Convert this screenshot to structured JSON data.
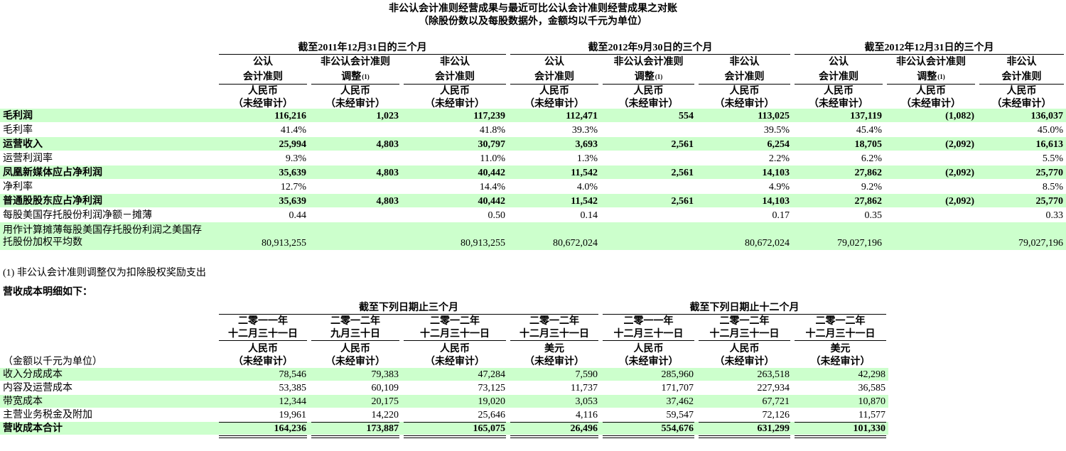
{
  "title": [
    "非公认会计准则经营成果与最近可比公认会计准则经营成果之对账",
    "（除股份数以及每股数据外，金额均以千元为单位）"
  ],
  "table1": {
    "groups": [
      "截至2011年12月31日的三个月",
      "截至2012年9月30日的三个月",
      "截至2012年12月31日的三个月"
    ],
    "columns": [
      {
        "line1": "公认",
        "line2": "会计准则",
        "currency": "人民币",
        "audit": "（未经审计）"
      },
      {
        "line1": "非公认会计准则",
        "line2": "调整",
        "note": "(1)",
        "currency": "人民币",
        "audit": "（未经审计）"
      },
      {
        "line1": "非公认",
        "line2": "会计准则",
        "currency": "人民币",
        "audit": "（未经审计）"
      },
      {
        "line1": "公认",
        "line2": "会计准则",
        "currency": "人民币",
        "audit": "（未经审计）"
      },
      {
        "line1": "非公认会计准则",
        "line2": "调整",
        "note": "(1)",
        "currency": "人民币",
        "audit": "（未经审计）"
      },
      {
        "line1": "非公认",
        "line2": "会计准则",
        "currency": "人民币",
        "audit": "（未经审计）"
      },
      {
        "line1": "公认",
        "line2": "会计准则",
        "currency": "人民币",
        "audit": "（未经审计）"
      },
      {
        "line1": "非公认会计准则",
        "line2": "调整",
        "note": "(1)",
        "currency": "人民币",
        "audit": "（未经审计）"
      },
      {
        "line1": "非公认",
        "line2": "会计准则",
        "currency": "人民币",
        "audit": "（未经审计）"
      }
    ],
    "rows": [
      {
        "label": "毛利润",
        "cells": [
          "116,216",
          "1,023",
          "117,239",
          "112,471",
          "554",
          "113,025",
          "137,119",
          "(1,082)",
          "136,037"
        ]
      },
      {
        "label": "毛利率",
        "cells": [
          "41.4%",
          null,
          "41.8%",
          "39.3%",
          null,
          "39.5%",
          "45.4%",
          null,
          "45.0%"
        ]
      },
      {
        "label": "运营收入",
        "cells": [
          "25,994",
          "4,803",
          "30,797",
          "3,693",
          "2,561",
          "6,254",
          "18,705",
          "(2,092)",
          "16,613"
        ]
      },
      {
        "label": "运营利润率",
        "cells": [
          "9.3%",
          null,
          "11.0%",
          "1.3%",
          null,
          "2.2%",
          "6.2%",
          null,
          "5.5%"
        ]
      },
      {
        "label": "凤凰新媒体应占净利润",
        "cells": [
          "35,639",
          "4,803",
          "40,442",
          "11,542",
          "2,561",
          "14,103",
          "27,862",
          "(2,092)",
          "25,770"
        ]
      },
      {
        "label": "净利率",
        "cells": [
          "12.7%",
          null,
          "14.4%",
          "4.0%",
          null,
          "4.9%",
          "9.2%",
          null,
          "8.5%"
        ]
      },
      {
        "label": "普通股股东应占净利润",
        "cells": [
          "35,639",
          "4,803",
          "40,442",
          "11,542",
          "2,561",
          "14,103",
          "27,862",
          "(2,092)",
          "25,770"
        ]
      },
      {
        "label": "每股美国存托股份利润净额－摊薄",
        "cells": [
          "0.44",
          null,
          "0.50",
          "0.14",
          null,
          "0.17",
          "0.35",
          null,
          "0.33"
        ]
      },
      {
        "label": "用作计算摊薄每股美国存托股份利润之美国存托股份加权平均数",
        "cells": [
          "80,913,255",
          null,
          "80,913,255",
          "80,672,024",
          null,
          "80,672,024",
          "79,027,196",
          null,
          "79,027,196"
        ]
      }
    ]
  },
  "footnote": "(1) 非公认会计准则调整仅为扣除股权奖励支出",
  "table2": {
    "heading": "营收成本明细如下：",
    "groups": [
      "截至下列日期止三个月",
      "截至下列日期止十二个月"
    ],
    "unit_label": "（金额以千元为单位）",
    "columns": [
      {
        "year": "二零一一年",
        "date": "十二月三十一日",
        "currency": "人民币",
        "audit": "（未经审计）"
      },
      {
        "year": "二零一二年",
        "date": "九月三十日",
        "currency": "人民币",
        "audit": "（未经审计）"
      },
      {
        "year": "二零一二年",
        "date": "十二月三十一日",
        "currency": "人民币",
        "audit": "（未经审计）"
      },
      {
        "year": "二零一二年",
        "date": "十二月三十一日",
        "currency": "美元",
        "audit": "（未经审计）"
      },
      {
        "year": "二零一一年",
        "date": "十二月三十一日",
        "currency": "人民币",
        "audit": "（未经审计）"
      },
      {
        "year": "二零一二年",
        "date": "十二月三十一日",
        "currency": "人民币",
        "audit": "（未经审计）"
      },
      {
        "year": "二零一二年",
        "date": "十二月三十一日",
        "currency": "美元",
        "audit": "（未经审计）"
      }
    ],
    "rows": [
      {
        "label": "收入分成成本",
        "cells": [
          "78,546",
          "79,383",
          "47,284",
          "7,590",
          "285,960",
          "263,518",
          "42,298"
        ]
      },
      {
        "label": "内容及运营成本",
        "cells": [
          "53,385",
          "60,109",
          "73,125",
          "11,737",
          "171,707",
          "227,934",
          "36,585"
        ]
      },
      {
        "label": "带宽成本",
        "cells": [
          "12,344",
          "20,175",
          "19,020",
          "3,053",
          "37,462",
          "67,721",
          "10,870"
        ]
      },
      {
        "label": "主营业务税金及附加",
        "cells": [
          "19,961",
          "14,220",
          "25,646",
          "4,116",
          "59,547",
          "72,126",
          "11,577"
        ]
      },
      {
        "label": "营收成本合计",
        "cells": [
          "164,236",
          "173,887",
          "165,075",
          "26,496",
          "554,676",
          "631,299",
          "101,330"
        ]
      }
    ]
  }
}
